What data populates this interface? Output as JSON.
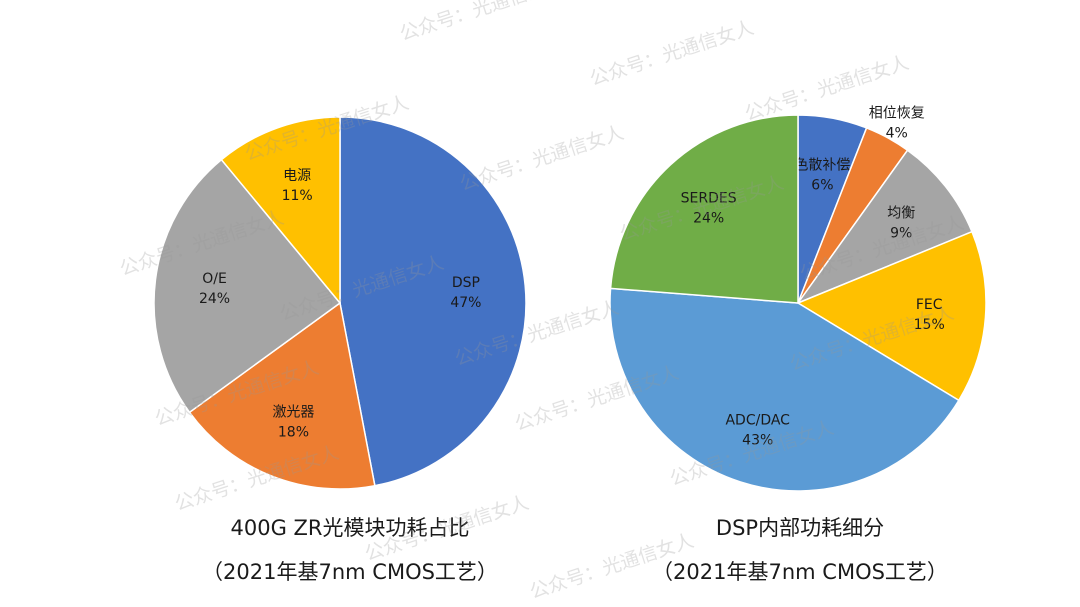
{
  "watermark": "公众号：光通信女人",
  "chart_data": [
    {
      "type": "pie",
      "title": "400G ZR光模块功耗占比",
      "subtitle": "（2021年基7nm CMOS工艺）",
      "slices": [
        {
          "label": "DSP",
          "value": 47,
          "color": "#4472C4"
        },
        {
          "label": "激光器",
          "value": 18,
          "color": "#ED7D31"
        },
        {
          "label": "O/E",
          "value": 24,
          "color": "#A5A5A5"
        },
        {
          "label": "电源",
          "value": 11,
          "color": "#FFC000"
        }
      ]
    },
    {
      "type": "pie",
      "title": "DSP内部功耗细分",
      "subtitle": "（2021年基7nm CMOS工艺）",
      "slices": [
        {
          "label": "色散补偿",
          "value": 6,
          "color": "#4472C4"
        },
        {
          "label": "相位恢复",
          "value": 4,
          "color": "#ED7D31"
        },
        {
          "label": "均衡",
          "value": 9,
          "color": "#A5A5A5"
        },
        {
          "label": "FEC",
          "value": 15,
          "color": "#FFC000"
        },
        {
          "label": "ADC/DAC",
          "value": 43,
          "color": "#5B9BD5"
        },
        {
          "label": "SERDES",
          "value": 24,
          "color": "#70AD47"
        }
      ]
    }
  ]
}
